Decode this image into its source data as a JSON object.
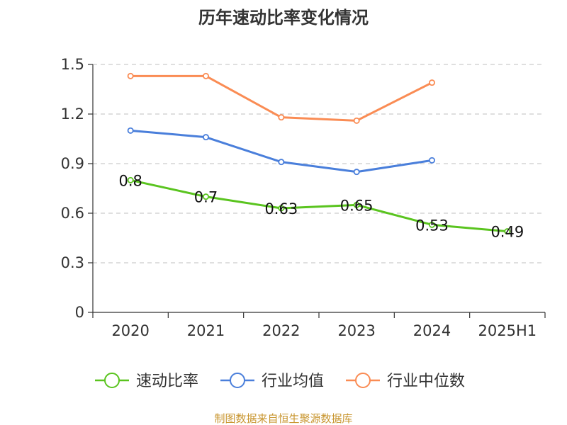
{
  "chart_data": {
    "type": "line",
    "title": "历年速动比率变化情况",
    "categories": [
      "2020",
      "2021",
      "2022",
      "2023",
      "2024",
      "2025H1"
    ],
    "y_ticks": [
      "0",
      "0.3",
      "0.6",
      "0.9",
      "1.2",
      "1.5"
    ],
    "ylim": [
      0,
      1.5
    ],
    "grid": true,
    "legend_position": "bottom",
    "series": [
      {
        "name": "速动比率",
        "color": "#5ac41f",
        "values": [
          0.8,
          0.7,
          0.63,
          0.65,
          0.53,
          0.49
        ],
        "labels": [
          "0.8",
          "0.7",
          "0.63",
          "0.65",
          "0.53",
          "0.49"
        ]
      },
      {
        "name": "行业均值",
        "color": "#4a7fdb",
        "values": [
          1.1,
          1.06,
          0.91,
          0.85,
          0.92,
          null
        ]
      },
      {
        "name": "行业中位数",
        "color": "#fa8c54",
        "values": [
          1.43,
          1.43,
          1.18,
          1.16,
          1.39,
          null
        ]
      }
    ],
    "source": "制图数据来自恒生聚源数据库"
  }
}
